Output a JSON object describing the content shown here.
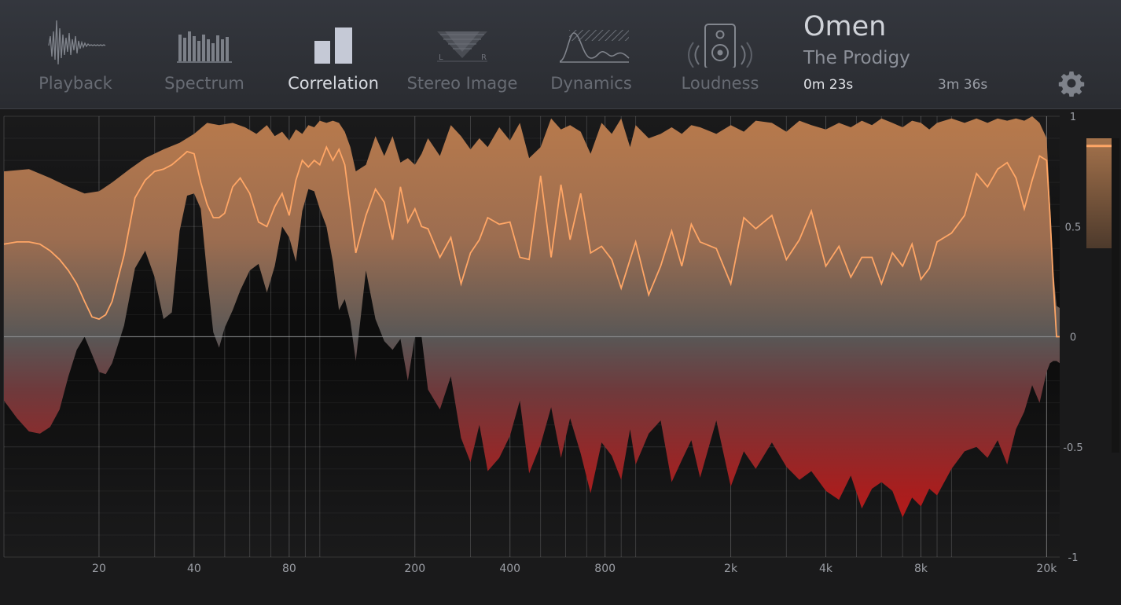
{
  "tabs": [
    {
      "id": "playback",
      "label": "Playback",
      "icon": "waveform-icon",
      "active": false
    },
    {
      "id": "spectrum",
      "label": "Spectrum",
      "icon": "spectrum-bars-icon",
      "active": false
    },
    {
      "id": "correlation",
      "label": "Correlation",
      "icon": "correlation-bars-icon",
      "active": true
    },
    {
      "id": "stereo-image",
      "label": "Stereo Image",
      "icon": "stereo-lr-icon",
      "active": false
    },
    {
      "id": "dynamics",
      "label": "Dynamics",
      "icon": "dynamics-curve-icon",
      "active": false
    },
    {
      "id": "loudness",
      "label": "Loudness",
      "icon": "speaker-icon",
      "active": false
    }
  ],
  "track": {
    "title": "Omen",
    "artist": "The Prodigy",
    "elapsed": "0m 23s",
    "duration": "3m 36s"
  },
  "settings_icon": "gear-icon",
  "colors": {
    "accent": "#ffa666",
    "positive_fill": "#b87a4c",
    "negative_fill": "#c41414",
    "meter_bar": "#a4724b"
  },
  "chart_data": {
    "type": "area",
    "x_scale": "log",
    "xlim": [
      10,
      22000
    ],
    "ylim": [
      -1,
      1
    ],
    "x_ticks": [
      20,
      40,
      80,
      200,
      400,
      800,
      2000,
      4000,
      8000,
      20000
    ],
    "x_tick_labels": [
      "20",
      "40",
      "80",
      "200",
      "400",
      "800",
      "2k",
      "4k",
      "8k",
      "20k"
    ],
    "y_ticks": [
      1,
      0.5,
      0,
      -0.5,
      -1
    ],
    "y_tick_labels": [
      "1",
      "0.5",
      "0",
      "-0.5",
      "-1"
    ],
    "grid": true,
    "meter_value": 0.86,
    "meter_fill_top": 1.0,
    "meter_fill_bottom": 0.4,
    "series": [
      {
        "role": "upper-envelope",
        "x": [
          10,
          12,
          14,
          16,
          18,
          20,
          22,
          25,
          28,
          32,
          36,
          40,
          44,
          48,
          53,
          58,
          63,
          68,
          72,
          76,
          80,
          84,
          88,
          92,
          96,
          100,
          105,
          110,
          115,
          120,
          125,
          130,
          140,
          150,
          160,
          170,
          180,
          190,
          200,
          210,
          220,
          240,
          260,
          280,
          300,
          320,
          340,
          370,
          400,
          430,
          460,
          500,
          540,
          580,
          620,
          670,
          720,
          780,
          840,
          900,
          960,
          1000,
          1100,
          1200,
          1300,
          1400,
          1500,
          1600,
          1800,
          2000,
          2200,
          2400,
          2700,
          3000,
          3300,
          3600,
          4000,
          4400,
          4800,
          5200,
          5600,
          6000,
          6500,
          7000,
          7500,
          8000,
          8500,
          9000,
          10000,
          11000,
          12000,
          13000,
          14000,
          15000,
          16000,
          17000,
          18000,
          19000,
          20000,
          20500,
          21000,
          21500,
          22000
        ],
        "y": [
          0.75,
          0.76,
          0.72,
          0.68,
          0.65,
          0.66,
          0.7,
          0.76,
          0.81,
          0.85,
          0.88,
          0.92,
          0.97,
          0.96,
          0.97,
          0.95,
          0.92,
          0.96,
          0.91,
          0.93,
          0.89,
          0.94,
          0.92,
          0.96,
          0.95,
          0.98,
          0.97,
          0.98,
          0.97,
          0.93,
          0.86,
          0.75,
          0.78,
          0.91,
          0.82,
          0.91,
          0.79,
          0.81,
          0.78,
          0.83,
          0.9,
          0.82,
          0.96,
          0.91,
          0.85,
          0.9,
          0.86,
          0.95,
          0.89,
          0.97,
          0.81,
          0.86,
          0.99,
          0.94,
          0.96,
          0.93,
          0.83,
          0.97,
          0.92,
          0.99,
          0.86,
          0.96,
          0.9,
          0.92,
          0.95,
          0.92,
          0.96,
          0.95,
          0.92,
          0.96,
          0.93,
          0.98,
          0.97,
          0.93,
          0.98,
          0.96,
          0.94,
          0.97,
          0.95,
          0.98,
          0.96,
          0.99,
          0.97,
          0.95,
          0.98,
          0.97,
          0.94,
          0.97,
          0.99,
          0.97,
          0.99,
          0.97,
          0.99,
          0.98,
          0.99,
          0.98,
          1.0,
          0.97,
          0.9,
          0.6,
          0.3,
          0.14,
          0.13
        ]
      },
      {
        "role": "lower-envelope",
        "x": [
          10,
          11,
          12,
          13,
          14,
          15,
          16,
          17,
          18,
          19,
          20,
          21,
          22,
          24,
          26,
          28,
          30,
          32,
          34,
          36,
          38,
          40,
          42,
          44,
          46,
          48,
          50,
          53,
          56,
          60,
          64,
          68,
          72,
          76,
          80,
          84,
          88,
          92,
          96,
          100,
          105,
          110,
          115,
          120,
          125,
          130,
          140,
          150,
          160,
          170,
          180,
          190,
          200,
          210,
          220,
          240,
          260,
          280,
          300,
          320,
          340,
          370,
          400,
          430,
          460,
          500,
          540,
          580,
          620,
          670,
          720,
          780,
          840,
          900,
          960,
          1000,
          1100,
          1200,
          1300,
          1400,
          1500,
          1600,
          1800,
          2000,
          2200,
          2400,
          2700,
          3000,
          3300,
          3600,
          4000,
          4400,
          4800,
          5200,
          5600,
          6000,
          6500,
          7000,
          7500,
          8000,
          8500,
          9000,
          10000,
          11000,
          12000,
          13000,
          14000,
          15000,
          16000,
          17000,
          18000,
          19000,
          20000,
          20500,
          21000,
          21500,
          22000
        ],
        "y": [
          -0.29,
          -0.37,
          -0.43,
          -0.44,
          -0.41,
          -0.33,
          -0.18,
          -0.06,
          0.0,
          -0.08,
          -0.16,
          -0.17,
          -0.12,
          0.05,
          0.31,
          0.39,
          0.27,
          0.08,
          0.11,
          0.48,
          0.64,
          0.65,
          0.58,
          0.28,
          0.02,
          -0.05,
          0.04,
          0.12,
          0.21,
          0.3,
          0.33,
          0.2,
          0.32,
          0.5,
          0.45,
          0.34,
          0.57,
          0.67,
          0.66,
          0.58,
          0.5,
          0.34,
          0.12,
          0.17,
          0.07,
          -0.11,
          0.3,
          0.08,
          -0.02,
          -0.06,
          -0.01,
          -0.2,
          0.0,
          0.0,
          -0.24,
          -0.33,
          -0.18,
          -0.46,
          -0.57,
          -0.4,
          -0.61,
          -0.55,
          -0.45,
          -0.29,
          -0.62,
          -0.49,
          -0.32,
          -0.55,
          -0.37,
          -0.53,
          -0.71,
          -0.48,
          -0.54,
          -0.65,
          -0.42,
          -0.58,
          -0.44,
          -0.38,
          -0.66,
          -0.56,
          -0.47,
          -0.64,
          -0.38,
          -0.68,
          -0.52,
          -0.6,
          -0.48,
          -0.59,
          -0.65,
          -0.61,
          -0.7,
          -0.74,
          -0.63,
          -0.78,
          -0.69,
          -0.66,
          -0.7,
          -0.82,
          -0.73,
          -0.77,
          -0.69,
          -0.72,
          -0.6,
          -0.52,
          -0.5,
          -0.55,
          -0.47,
          -0.58,
          -0.42,
          -0.34,
          -0.22,
          -0.3,
          -0.16,
          -0.12,
          -0.11,
          -0.11,
          -0.12
        ]
      },
      {
        "role": "correlation",
        "x": [
          10,
          11,
          12,
          13,
          14,
          15,
          16,
          17,
          18,
          19,
          20,
          21,
          22,
          24,
          26,
          28,
          30,
          32,
          34,
          36,
          38,
          40,
          42,
          44,
          46,
          48,
          50,
          53,
          56,
          60,
          64,
          68,
          72,
          76,
          80,
          84,
          88,
          92,
          96,
          100,
          105,
          110,
          115,
          120,
          125,
          130,
          140,
          150,
          160,
          170,
          180,
          190,
          200,
          210,
          220,
          240,
          260,
          280,
          300,
          320,
          340,
          370,
          400,
          430,
          460,
          500,
          540,
          580,
          620,
          670,
          720,
          780,
          840,
          900,
          960,
          1000,
          1100,
          1200,
          1300,
          1400,
          1500,
          1600,
          1800,
          2000,
          2200,
          2400,
          2700,
          3000,
          3300,
          3600,
          4000,
          4400,
          4800,
          5200,
          5600,
          6000,
          6500,
          7000,
          7500,
          8000,
          8500,
          9000,
          10000,
          11000,
          12000,
          13000,
          14000,
          15000,
          16000,
          17000,
          18000,
          19000,
          20000,
          20500,
          21000,
          21500,
          22000
        ],
        "y": [
          0.42,
          0.43,
          0.43,
          0.42,
          0.39,
          0.35,
          0.3,
          0.24,
          0.16,
          0.09,
          0.08,
          0.1,
          0.16,
          0.37,
          0.63,
          0.71,
          0.75,
          0.76,
          0.78,
          0.81,
          0.84,
          0.83,
          0.7,
          0.6,
          0.54,
          0.54,
          0.56,
          0.68,
          0.72,
          0.65,
          0.52,
          0.5,
          0.59,
          0.65,
          0.55,
          0.71,
          0.8,
          0.77,
          0.8,
          0.78,
          0.86,
          0.8,
          0.85,
          0.78,
          0.58,
          0.38,
          0.55,
          0.67,
          0.61,
          0.44,
          0.68,
          0.52,
          0.58,
          0.5,
          0.49,
          0.36,
          0.45,
          0.24,
          0.38,
          0.44,
          0.54,
          0.51,
          0.52,
          0.36,
          0.35,
          0.73,
          0.36,
          0.69,
          0.44,
          0.65,
          0.38,
          0.41,
          0.35,
          0.22,
          0.35,
          0.43,
          0.19,
          0.32,
          0.48,
          0.32,
          0.51,
          0.43,
          0.4,
          0.24,
          0.54,
          0.49,
          0.55,
          0.35,
          0.44,
          0.57,
          0.32,
          0.41,
          0.27,
          0.36,
          0.36,
          0.24,
          0.38,
          0.32,
          0.42,
          0.26,
          0.31,
          0.43,
          0.47,
          0.55,
          0.74,
          0.68,
          0.76,
          0.79,
          0.72,
          0.58,
          0.71,
          0.82,
          0.8,
          0.55,
          0.25,
          0.0,
          0.0
        ]
      }
    ]
  }
}
